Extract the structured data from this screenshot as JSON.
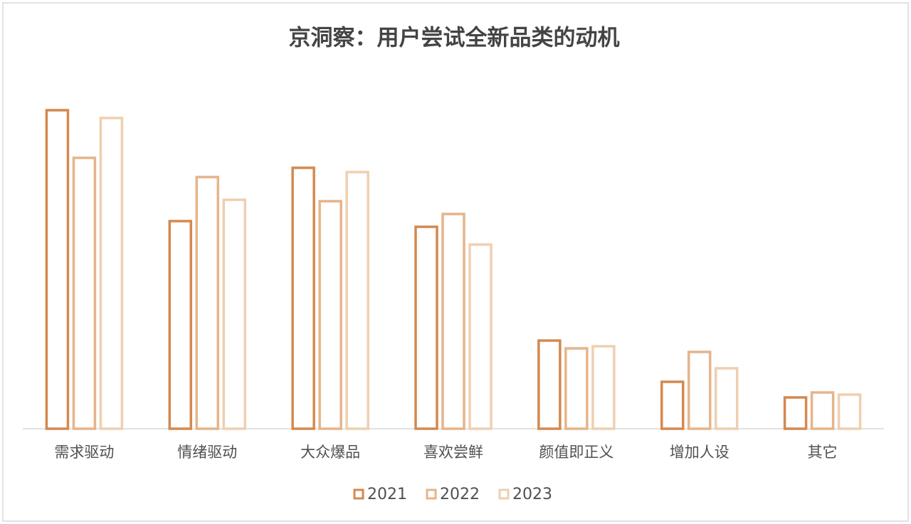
{
  "chart_data": {
    "type": "bar",
    "title": "京洞察：用户尝试全新品类的动机",
    "categories": [
      "需求驱动",
      "情绪驱动",
      "大众爆品",
      "喜欢尝鲜",
      "颜值即正义",
      "增加人设",
      "其它"
    ],
    "series": [
      {
        "name": "2021",
        "color": "#d4894f",
        "values": [
          44.8,
          29.2,
          36.7,
          28.4,
          12.4,
          6.6,
          4.4
        ]
      },
      {
        "name": "2022",
        "color": "#e6b48a",
        "values": [
          38.1,
          35.4,
          32.0,
          30.2,
          11.3,
          10.8,
          5.1
        ]
      },
      {
        "name": "2023",
        "color": "#efcfb0",
        "values": [
          43.7,
          32.2,
          36.1,
          25.9,
          11.6,
          8.5,
          4.8
        ]
      }
    ],
    "legend": "bottom"
  }
}
